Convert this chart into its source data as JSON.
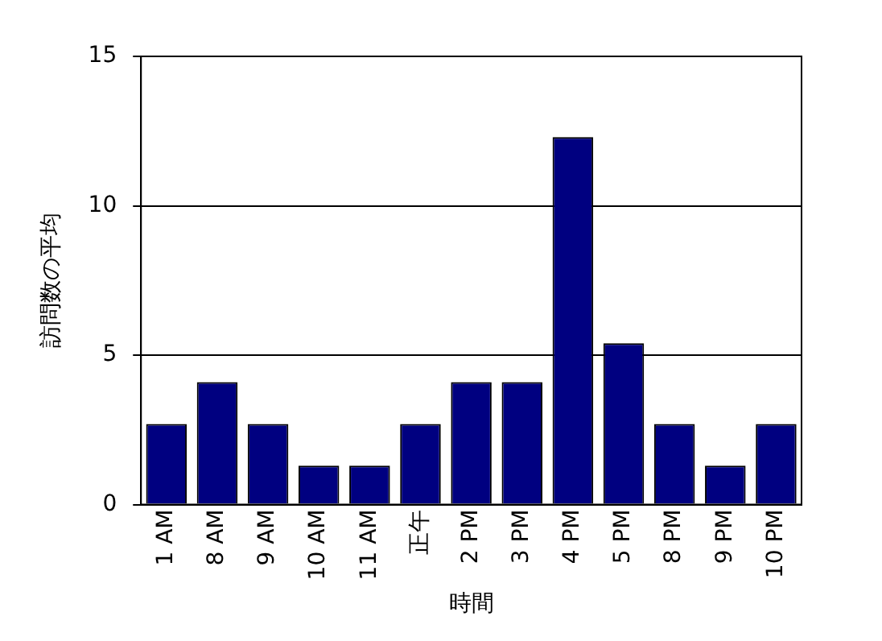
{
  "chart_data": {
    "type": "bar",
    "xlabel": "時間",
    "ylabel": "訪問数の平均",
    "categories": [
      "1 AM",
      "8 AM",
      "9 AM",
      "10 AM",
      "11 AM",
      "正午",
      "2 PM",
      "3 PM",
      "4 PM",
      "5 PM",
      "8 PM",
      "9 PM",
      "10 PM"
    ],
    "values": [
      2.7,
      4.1,
      2.7,
      1.3,
      1.3,
      2.7,
      4.1,
      4.1,
      12.3,
      5.4,
      2.7,
      1.3,
      2.7
    ],
    "color": "#000080",
    "ylim": [
      0,
      15
    ],
    "yticks": [
      0,
      5,
      10,
      15
    ],
    "grid": "y",
    "legend": false
  }
}
